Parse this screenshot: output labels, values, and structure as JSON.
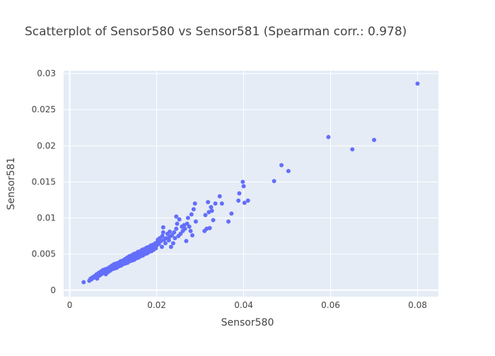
{
  "chart_data": {
    "type": "scatter",
    "title": "Scatterplot of Sensor580 vs Sensor581 (Spearman corr.: 0.978)",
    "xlabel": "Sensor580",
    "ylabel": "Sensor581",
    "xlim": [
      -0.0014,
      0.0848
    ],
    "ylim": [
      -0.0009,
      0.0304
    ],
    "x_ticks": [
      0,
      0.02,
      0.04,
      0.06,
      0.08
    ],
    "x_tick_labels": [
      "0",
      "0.02",
      "0.04",
      "0.06",
      "0.08"
    ],
    "y_ticks": [
      0,
      0.005,
      0.01,
      0.015,
      0.02,
      0.025,
      0.03
    ],
    "y_tick_labels": [
      "0",
      "0.005",
      "0.01",
      "0.015",
      "0.02",
      "0.025",
      "0.03"
    ],
    "grid": true,
    "legend": false,
    "colors": {
      "marker": "#636efa",
      "plot_bg": "#e5ecf6",
      "grid": "#ffffff",
      "text": "#444444"
    },
    "series": [
      {
        "points": [
          [
            0.0032,
            0.0011
          ],
          [
            0.0045,
            0.0013
          ],
          [
            0.0048,
            0.0016
          ],
          [
            0.005,
            0.0015
          ],
          [
            0.0053,
            0.0018
          ],
          [
            0.0055,
            0.0017
          ],
          [
            0.0058,
            0.002
          ],
          [
            0.006,
            0.0019
          ],
          [
            0.0062,
            0.0022
          ],
          [
            0.0063,
            0.0016
          ],
          [
            0.0065,
            0.0021
          ],
          [
            0.0067,
            0.0024
          ],
          [
            0.0068,
            0.002
          ],
          [
            0.007,
            0.0023
          ],
          [
            0.0072,
            0.0026
          ],
          [
            0.0073,
            0.0022
          ],
          [
            0.0075,
            0.0025
          ],
          [
            0.0077,
            0.0028
          ],
          [
            0.0078,
            0.0024
          ],
          [
            0.008,
            0.0027
          ],
          [
            0.0082,
            0.0029
          ],
          [
            0.0083,
            0.0022
          ],
          [
            0.0085,
            0.0026
          ],
          [
            0.0087,
            0.003
          ],
          [
            0.0088,
            0.0025
          ],
          [
            0.009,
            0.0028
          ],
          [
            0.0092,
            0.0032
          ],
          [
            0.0093,
            0.0027
          ],
          [
            0.0095,
            0.003
          ],
          [
            0.0097,
            0.0034
          ],
          [
            0.0098,
            0.0029
          ],
          [
            0.01,
            0.0032
          ],
          [
            0.0102,
            0.0036
          ],
          [
            0.0103,
            0.003
          ],
          [
            0.0105,
            0.0033
          ],
          [
            0.0107,
            0.0037
          ],
          [
            0.0108,
            0.0031
          ],
          [
            0.011,
            0.0034
          ],
          [
            0.0112,
            0.0038
          ],
          [
            0.0113,
            0.0033
          ],
          [
            0.0115,
            0.0036
          ],
          [
            0.0117,
            0.004
          ],
          [
            0.0118,
            0.0034
          ],
          [
            0.012,
            0.0037
          ],
          [
            0.0122,
            0.0041
          ],
          [
            0.0123,
            0.0036
          ],
          [
            0.0125,
            0.0039
          ],
          [
            0.0127,
            0.0043
          ],
          [
            0.0128,
            0.0037
          ],
          [
            0.013,
            0.004
          ],
          [
            0.0132,
            0.0045
          ],
          [
            0.0133,
            0.0038
          ],
          [
            0.0135,
            0.0042
          ],
          [
            0.0137,
            0.0047
          ],
          [
            0.0138,
            0.004
          ],
          [
            0.014,
            0.0043
          ],
          [
            0.0142,
            0.0048
          ],
          [
            0.0143,
            0.0041
          ],
          [
            0.0145,
            0.0045
          ],
          [
            0.0147,
            0.005
          ],
          [
            0.0148,
            0.0042
          ],
          [
            0.015,
            0.0046
          ],
          [
            0.0152,
            0.0051
          ],
          [
            0.0153,
            0.0044
          ],
          [
            0.0155,
            0.0048
          ],
          [
            0.0157,
            0.0053
          ],
          [
            0.0158,
            0.0045
          ],
          [
            0.016,
            0.0049
          ],
          [
            0.0162,
            0.0054
          ],
          [
            0.0163,
            0.0047
          ],
          [
            0.0165,
            0.0051
          ],
          [
            0.0167,
            0.0056
          ],
          [
            0.0168,
            0.0048
          ],
          [
            0.017,
            0.0052
          ],
          [
            0.0172,
            0.0057
          ],
          [
            0.0173,
            0.005
          ],
          [
            0.0175,
            0.0054
          ],
          [
            0.0177,
            0.0059
          ],
          [
            0.0178,
            0.0051
          ],
          [
            0.018,
            0.0055
          ],
          [
            0.0182,
            0.006
          ],
          [
            0.0183,
            0.0053
          ],
          [
            0.0185,
            0.0057
          ],
          [
            0.0187,
            0.0062
          ],
          [
            0.0188,
            0.0054
          ],
          [
            0.019,
            0.0058
          ],
          [
            0.0192,
            0.0063
          ],
          [
            0.0193,
            0.0056
          ],
          [
            0.0195,
            0.006
          ],
          [
            0.0197,
            0.0065
          ],
          [
            0.0198,
            0.0058
          ],
          [
            0.02,
            0.0062
          ],
          [
            0.0202,
            0.0067
          ],
          [
            0.0203,
            0.007
          ],
          [
            0.0205,
            0.0064
          ],
          [
            0.0207,
            0.0072
          ],
          [
            0.021,
            0.0068
          ],
          [
            0.0212,
            0.006
          ],
          [
            0.0213,
            0.0075
          ],
          [
            0.0215,
            0.008
          ],
          [
            0.0217,
            0.007
          ],
          [
            0.022,
            0.0065
          ],
          [
            0.0222,
            0.0072
          ],
          [
            0.0225,
            0.0078
          ],
          [
            0.0228,
            0.0069
          ],
          [
            0.023,
            0.0074
          ],
          [
            0.0233,
            0.006
          ],
          [
            0.0235,
            0.0076
          ],
          [
            0.0238,
            0.0065
          ],
          [
            0.024,
            0.008
          ],
          [
            0.0242,
            0.0072
          ],
          [
            0.0245,
            0.0085
          ],
          [
            0.0247,
            0.0092
          ],
          [
            0.025,
            0.0075
          ],
          [
            0.0252,
            0.0098
          ],
          [
            0.0255,
            0.0078
          ],
          [
            0.0258,
            0.0088
          ],
          [
            0.026,
            0.0082
          ],
          [
            0.0263,
            0.009
          ],
          [
            0.0265,
            0.0085
          ],
          [
            0.0268,
            0.0068
          ],
          [
            0.027,
            0.0092
          ],
          [
            0.0272,
            0.01
          ],
          [
            0.0275,
            0.0088
          ],
          [
            0.0278,
            0.0082
          ],
          [
            0.028,
            0.0105
          ],
          [
            0.0282,
            0.0076
          ],
          [
            0.0285,
            0.0112
          ],
          [
            0.0288,
            0.012
          ],
          [
            0.029,
            0.0095
          ],
          [
            0.0245,
            0.0102
          ],
          [
            0.0215,
            0.0087
          ],
          [
            0.023,
            0.0081
          ],
          [
            0.031,
            0.0082
          ],
          [
            0.0312,
            0.0104
          ],
          [
            0.0315,
            0.0085
          ],
          [
            0.0318,
            0.0122
          ],
          [
            0.032,
            0.0108
          ],
          [
            0.0322,
            0.0086
          ],
          [
            0.0325,
            0.0115
          ],
          [
            0.0327,
            0.011
          ],
          [
            0.033,
            0.0097
          ],
          [
            0.0335,
            0.012
          ],
          [
            0.0345,
            0.013
          ],
          [
            0.035,
            0.012
          ],
          [
            0.0365,
            0.0095
          ],
          [
            0.0372,
            0.0106
          ],
          [
            0.0388,
            0.0124
          ],
          [
            0.039,
            0.0134
          ],
          [
            0.0398,
            0.015
          ],
          [
            0.04,
            0.0144
          ],
          [
            0.0402,
            0.0121
          ],
          [
            0.041,
            0.0124
          ],
          [
            0.047,
            0.0151
          ],
          [
            0.0487,
            0.0173
          ],
          [
            0.0503,
            0.0165
          ],
          [
            0.0595,
            0.0212
          ],
          [
            0.065,
            0.0195
          ],
          [
            0.07,
            0.0208
          ],
          [
            0.08,
            0.0286
          ]
        ]
      }
    ]
  }
}
